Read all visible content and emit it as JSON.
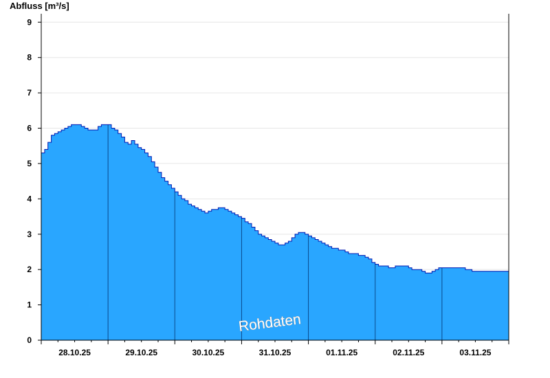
{
  "chart_data": {
    "type": "area",
    "ylabel": "Abfluss [m³/s]",
    "xlabel": "",
    "title": "",
    "watermark": "Rohdaten",
    "x_unit": "days",
    "x_tick_labels": [
      "28.10.25",
      "29.10.25",
      "30.10.25",
      "31.10.25",
      "01.11.25",
      "02.11.25",
      "03.11.25"
    ],
    "day_dividers": [
      "29.10.25",
      "30.10.25",
      "31.10.25",
      "01.11.25",
      "02.11.25",
      "03.11.25"
    ],
    "xlim": [
      "28.10.25 00:00",
      "04.11.25 00:00"
    ],
    "ylim": [
      0,
      9.2
    ],
    "yticks": [
      0,
      1,
      2,
      3,
      4,
      5,
      6,
      7,
      8,
      9
    ],
    "grid": "horizontal",
    "colors": {
      "fill": "#29a6ff",
      "line": "#0018b0",
      "divider": "#0a4a8c",
      "axis": "#000000",
      "grid": "#e6e6e6"
    },
    "series": [
      {
        "x": [
          0,
          0.05,
          0.1,
          0.15,
          0.2,
          0.25,
          0.3,
          0.35,
          0.4,
          0.45,
          0.5,
          0.55,
          0.6,
          0.65,
          0.7,
          0.75,
          0.8,
          0.85,
          0.9,
          0.95,
          1.0,
          1.05,
          1.1,
          1.15,
          1.2,
          1.25,
          1.3,
          1.35,
          1.4,
          1.45,
          1.5,
          1.55,
          1.6,
          1.65,
          1.7,
          1.75,
          1.8,
          1.85,
          1.9,
          1.95,
          2.0,
          2.05,
          2.1,
          2.15,
          2.2,
          2.25,
          2.3,
          2.35,
          2.4,
          2.45,
          2.5,
          2.55,
          2.6,
          2.65,
          2.7,
          2.75,
          2.8,
          2.85,
          2.9,
          2.95,
          3.0,
          3.05,
          3.1,
          3.15,
          3.2,
          3.25,
          3.3,
          3.35,
          3.4,
          3.45,
          3.5,
          3.55,
          3.6,
          3.65,
          3.7,
          3.75,
          3.8,
          3.85,
          3.9,
          3.95,
          4.0,
          4.05,
          4.1,
          4.15,
          4.2,
          4.25,
          4.3,
          4.35,
          4.4,
          4.45,
          4.5,
          4.55,
          4.6,
          4.65,
          4.7,
          4.75,
          4.8,
          4.85,
          4.9,
          4.95,
          5.0,
          5.05,
          5.1,
          5.15,
          5.2,
          5.25,
          5.3,
          5.35,
          5.4,
          5.45,
          5.5,
          5.55,
          5.6,
          5.65,
          5.7,
          5.75,
          5.8,
          5.85,
          5.9,
          5.95,
          6.0,
          6.05,
          6.1,
          6.15,
          6.2,
          6.25,
          6.3,
          6.35,
          6.4,
          6.45,
          6.5,
          6.55,
          6.6,
          6.65,
          6.7,
          6.75,
          6.8,
          6.85,
          6.9,
          6.95,
          7.0
        ],
        "y": [
          5.3,
          5.4,
          5.6,
          5.8,
          5.85,
          5.9,
          5.95,
          6.0,
          6.05,
          6.1,
          6.1,
          6.1,
          6.05,
          6.0,
          5.95,
          5.95,
          5.95,
          6.05,
          6.1,
          6.1,
          6.1,
          6.0,
          5.95,
          5.85,
          5.75,
          5.6,
          5.55,
          5.65,
          5.55,
          5.45,
          5.4,
          5.3,
          5.2,
          5.05,
          4.9,
          4.75,
          4.6,
          4.5,
          4.4,
          4.3,
          4.2,
          4.1,
          4.0,
          3.95,
          3.85,
          3.8,
          3.75,
          3.7,
          3.65,
          3.6,
          3.65,
          3.7,
          3.7,
          3.75,
          3.75,
          3.7,
          3.65,
          3.6,
          3.55,
          3.5,
          3.45,
          3.35,
          3.3,
          3.2,
          3.1,
          3.0,
          2.95,
          2.9,
          2.85,
          2.8,
          2.75,
          2.7,
          2.7,
          2.75,
          2.8,
          2.9,
          3.0,
          3.05,
          3.05,
          3.0,
          2.95,
          2.9,
          2.85,
          2.8,
          2.75,
          2.7,
          2.65,
          2.6,
          2.6,
          2.55,
          2.55,
          2.5,
          2.45,
          2.45,
          2.45,
          2.4,
          2.4,
          2.35,
          2.3,
          2.2,
          2.15,
          2.1,
          2.1,
          2.1,
          2.05,
          2.05,
          2.1,
          2.1,
          2.1,
          2.1,
          2.05,
          2.0,
          2.0,
          2.0,
          1.95,
          1.9,
          1.9,
          1.95,
          2.0,
          2.05,
          2.05,
          2.05,
          2.05,
          2.05,
          2.05,
          2.05,
          2.05,
          2.0,
          2.0,
          1.95,
          1.95,
          1.95,
          1.95,
          1.95,
          1.95,
          1.95,
          1.95,
          1.95,
          1.95,
          1.95,
          1.95
        ]
      }
    ]
  }
}
